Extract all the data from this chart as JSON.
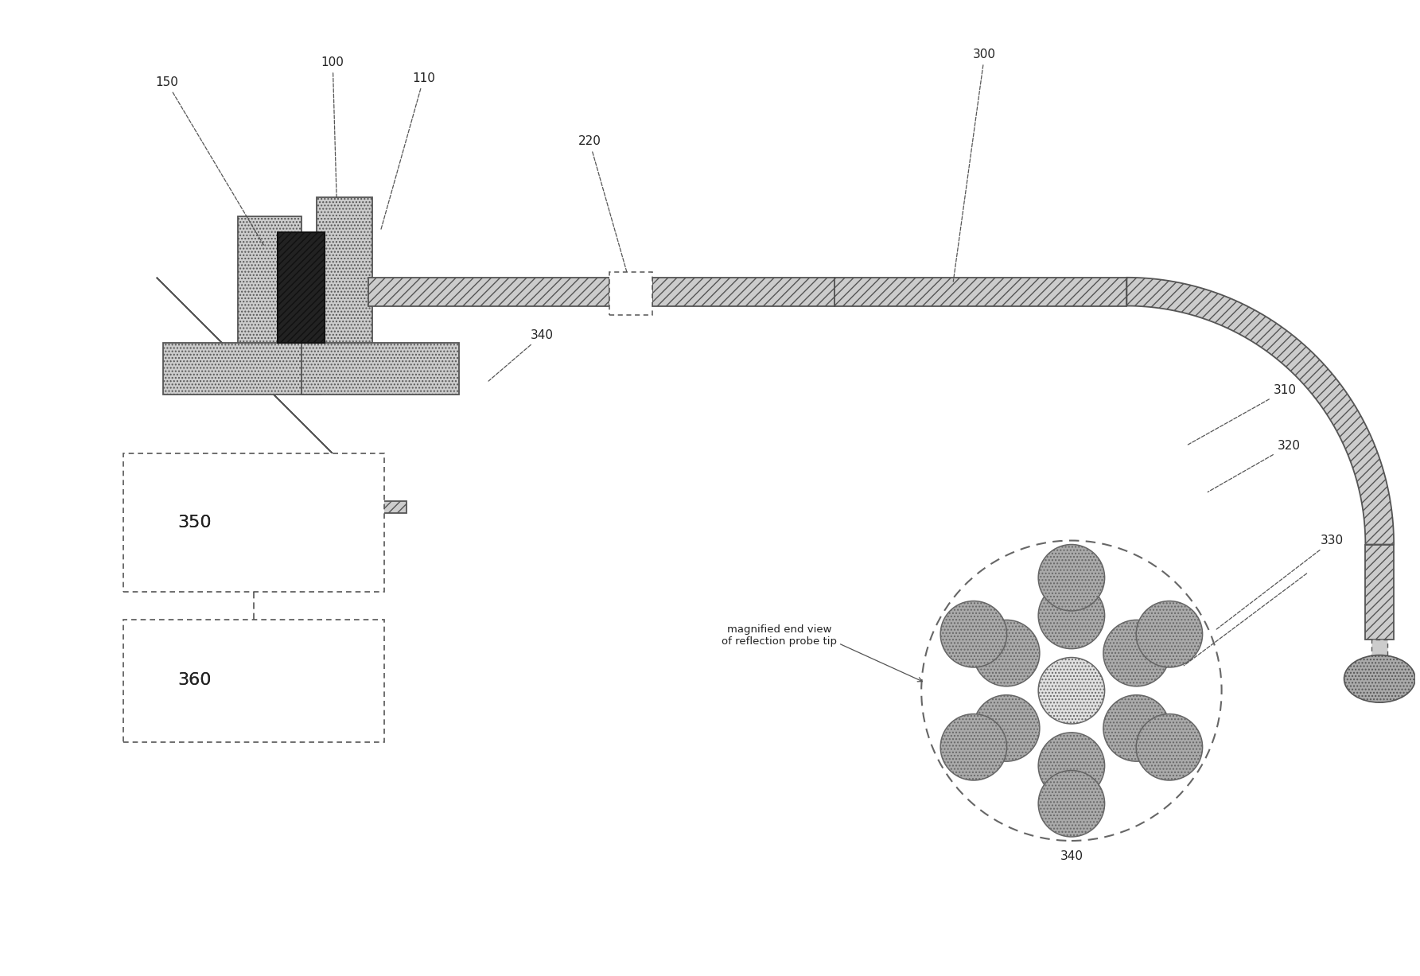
{
  "background_color": "#ffffff",
  "fig_width": 17.85,
  "fig_height": 12.27,
  "gray_light": "#cccccc",
  "gray_med": "#aaaaaa",
  "gray_dark": "#666666",
  "ec_color": "#555555",
  "lw_main": 1.3,
  "label_fs": 11,
  "label_color": "#222222"
}
